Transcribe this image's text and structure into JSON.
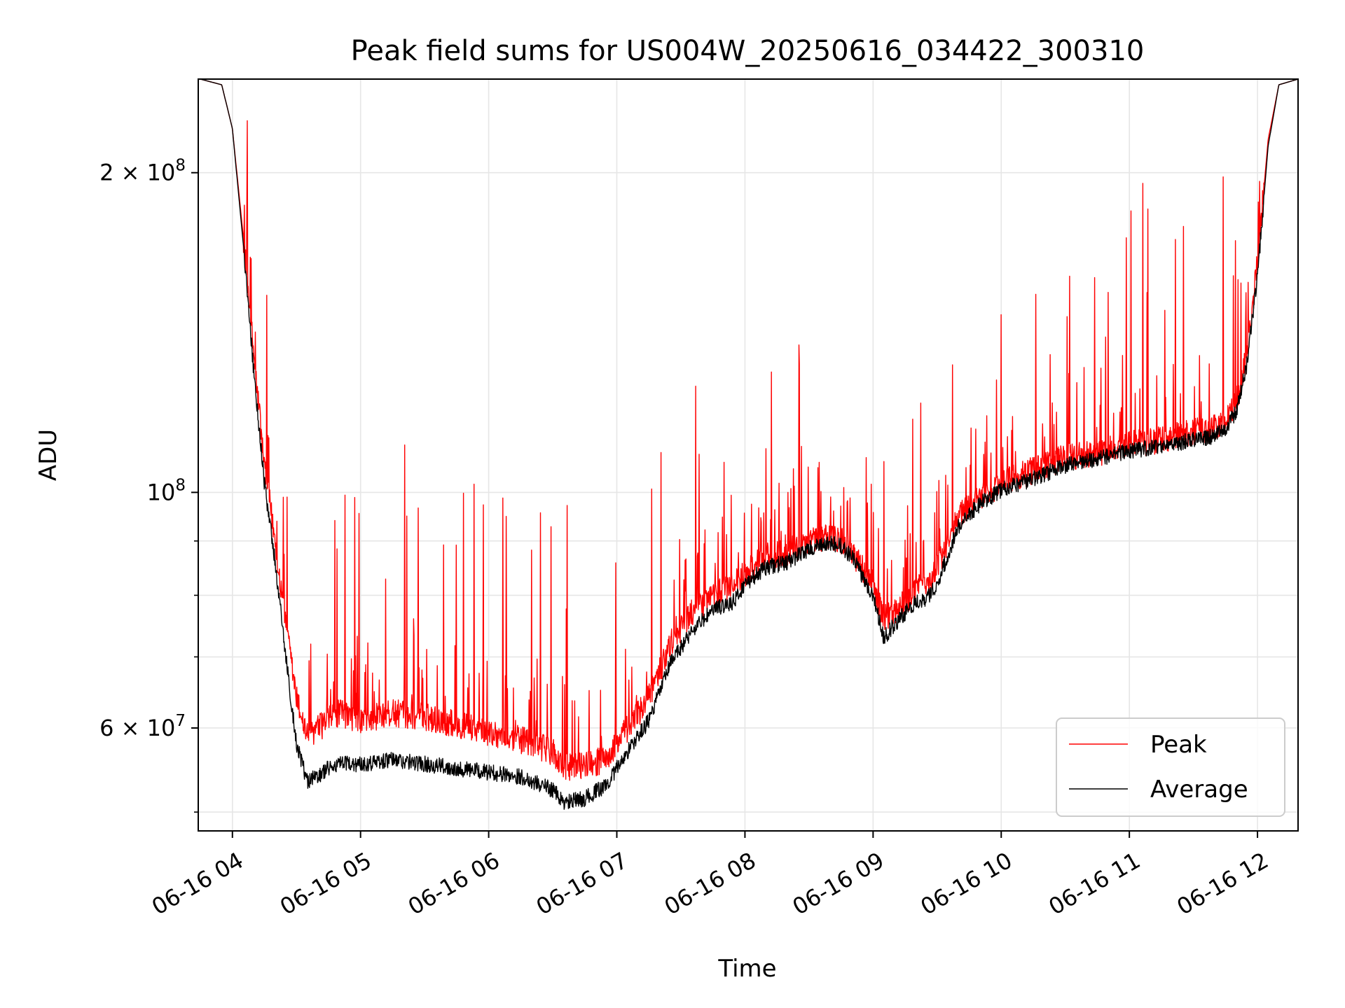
{
  "chart_data": {
    "type": "line",
    "title": "Peak field sums for US004W_20250616_034422_300310",
    "xlabel": "Time",
    "ylabel": "ADU",
    "yscale": "log",
    "xlim": [
      "06-16 03:44",
      "06-16 12:19"
    ],
    "ylim": [
      48000000,
      245000000
    ],
    "grid": true,
    "legend_position": "lower-right",
    "x_ticks": [
      "06-16 04",
      "06-16 05",
      "06-16 06",
      "06-16 07",
      "06-16 08",
      "06-16 09",
      "06-16 10",
      "06-16 11",
      "06-16 12"
    ],
    "y_tick_labels": [
      {
        "value": 60000000,
        "base": "6 × 10",
        "exp": "7"
      },
      {
        "value": 100000000,
        "base": "10",
        "exp": "8"
      },
      {
        "value": 200000000,
        "base": "2 × 10",
        "exp": "8"
      }
    ],
    "y_minor_ticks": [
      50000000,
      70000000,
      80000000,
      90000000
    ],
    "x": [
      "06-16 03:45",
      "06-16 03:55",
      "06-16 04:00",
      "06-16 04:05",
      "06-16 04:10",
      "06-16 04:15",
      "06-16 04:20",
      "06-16 04:25",
      "06-16 04:30",
      "06-16 04:35",
      "06-16 04:40",
      "06-16 04:45",
      "06-16 04:50",
      "06-16 05:00",
      "06-16 05:15",
      "06-16 05:30",
      "06-16 05:45",
      "06-16 06:00",
      "06-16 06:15",
      "06-16 06:30",
      "06-16 06:35",
      "06-16 06:45",
      "06-16 06:55",
      "06-16 07:05",
      "06-16 07:15",
      "06-16 07:25",
      "06-16 07:35",
      "06-16 07:45",
      "06-16 07:55",
      "06-16 08:00",
      "06-16 08:10",
      "06-16 08:20",
      "06-16 08:30",
      "06-16 08:40",
      "06-16 08:45",
      "06-16 08:50",
      "06-16 09:00",
      "06-16 09:05",
      "06-16 09:10",
      "06-16 09:15",
      "06-16 09:20",
      "06-16 09:25",
      "06-16 09:30",
      "06-16 09:40",
      "06-16 09:50",
      "06-16 10:00",
      "06-16 10:15",
      "06-16 10:30",
      "06-16 10:45",
      "06-16 11:00",
      "06-16 11:15",
      "06-16 11:30",
      "06-16 11:40",
      "06-16 11:45",
      "06-16 11:50",
      "06-16 11:55",
      "06-16 12:00",
      "06-16 12:05",
      "06-16 12:10",
      "06-16 12:19"
    ],
    "series": [
      {
        "name": "Peak",
        "color": "#ff0000",
        "values": [
          245000000,
          242000000,
          220000000,
          175000000,
          135000000,
          106000000,
          90000000,
          75000000,
          64000000,
          59000000,
          60000000,
          61000000,
          62000000,
          61000000,
          62000000,
          61500000,
          60500000,
          59500000,
          58500000,
          57000000,
          55000000,
          55500000,
          56000000,
          60000000,
          64000000,
          72000000,
          77000000,
          80000000,
          82000000,
          84000000,
          87000000,
          88000000,
          90000000,
          91000000,
          90000000,
          88000000,
          82000000,
          76000000,
          77000000,
          79000000,
          81000000,
          82000000,
          85000000,
          95000000,
          99000000,
          102000000,
          105000000,
          108000000,
          109000000,
          111000000,
          112000000,
          114000000,
          115000000,
          117000000,
          121000000,
          135000000,
          165000000,
          215000000,
          242000000,
          245000000
        ]
      },
      {
        "name": "Average",
        "color": "#000000",
        "values": [
          245000000,
          242000000,
          220000000,
          172000000,
          130000000,
          102000000,
          86000000,
          70000000,
          58000000,
          53500000,
          54000000,
          55000000,
          55500000,
          55500000,
          56000000,
          55500000,
          55000000,
          54500000,
          54000000,
          52500000,
          51000000,
          51500000,
          53000000,
          57000000,
          61000000,
          69000000,
          74000000,
          77500000,
          79000000,
          82000000,
          85000000,
          86000000,
          88500000,
          89500000,
          89000000,
          87000000,
          80000000,
          73000000,
          75000000,
          77000000,
          79000000,
          79500000,
          82000000,
          93000000,
          97500000,
          100500000,
          103000000,
          106000000,
          107500000,
          109500000,
          110500000,
          112000000,
          113000000,
          115000000,
          119000000,
          132000000,
          160000000,
          212000000,
          242000000,
          245000000
        ]
      }
    ],
    "annotations": []
  }
}
